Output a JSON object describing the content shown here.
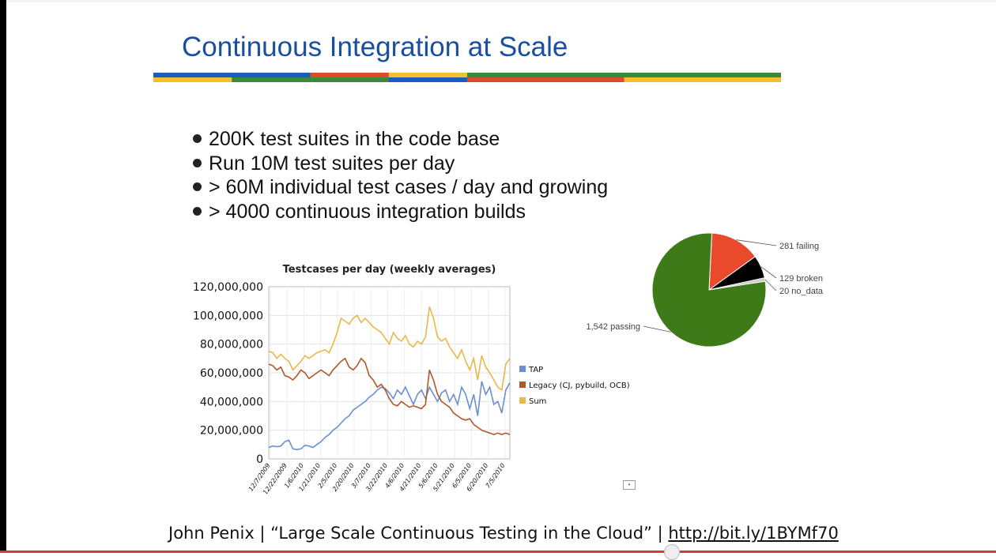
{
  "slide": {
    "title": "Continuous Integration at Scale",
    "bullets": [
      "200K test suites in the code base",
      "Run 10M test suites per day",
      "> 60M individual test cases / day and growing",
      "> 4000 continuous integration builds"
    ],
    "footer": {
      "text": "John Penix | “Large Scale Continuous Testing in the Cloud” | ",
      "link": "http://bit.ly/1BYMf70"
    },
    "stripe_colors": [
      "#1e5bbf",
      "#f2c12e",
      "#3a8a3a",
      "#d94b2b"
    ]
  },
  "chart_data": [
    {
      "type": "line",
      "title": "Testcases per day (weekly averages)",
      "ylim": [
        0,
        120000000
      ],
      "yticks": [
        "0",
        "20,000,000",
        "40,000,000",
        "60,000,000",
        "80,000,000",
        "100,000,000",
        "120,000,000"
      ],
      "xticks": [
        "12/7/2009",
        "12/22/2009",
        "1/6/2010",
        "1/21/2010",
        "2/5/2010",
        "2/20/2010",
        "3/7/2010",
        "3/22/2010",
        "4/6/2010",
        "4/21/2010",
        "5/6/2010",
        "5/21/2010",
        "6/5/2010",
        "6/20/2010",
        "7/5/2010"
      ],
      "legend_position": "right",
      "series": [
        {
          "name": "TAP",
          "color": "#6b8fd1",
          "values": [
            8000000,
            9000000,
            8500000,
            9000000,
            12000000,
            13000000,
            7000000,
            6500000,
            7000000,
            9500000,
            9000000,
            8000000,
            10000000,
            12000000,
            15000000,
            17000000,
            20000000,
            22000000,
            25000000,
            28000000,
            30000000,
            34000000,
            36000000,
            38000000,
            40000000,
            43000000,
            45000000,
            48000000,
            50000000,
            49000000,
            46000000,
            42000000,
            48000000,
            45000000,
            50000000,
            44000000,
            38000000,
            45000000,
            48000000,
            42000000,
            50000000,
            45000000,
            40000000,
            46000000,
            48000000,
            40000000,
            45000000,
            38000000,
            50000000,
            45000000,
            35000000,
            45000000,
            30000000,
            54000000,
            45000000,
            50000000,
            38000000,
            40000000,
            32000000,
            48000000,
            53000000
          ]
        },
        {
          "name": "Legacy (CJ, pybuild, OCB)",
          "color": "#b0582a",
          "values": [
            66000000,
            65000000,
            62000000,
            64000000,
            58000000,
            57000000,
            55000000,
            58000000,
            62000000,
            60000000,
            56000000,
            58000000,
            60000000,
            62000000,
            60000000,
            58000000,
            62000000,
            65000000,
            68000000,
            70000000,
            64000000,
            62000000,
            65000000,
            70000000,
            67000000,
            58000000,
            55000000,
            50000000,
            52000000,
            48000000,
            42000000,
            38000000,
            37000000,
            40000000,
            38000000,
            36000000,
            37000000,
            36000000,
            35000000,
            38000000,
            62000000,
            55000000,
            45000000,
            40000000,
            38000000,
            36000000,
            32000000,
            30000000,
            28000000,
            27000000,
            28000000,
            24000000,
            22000000,
            20000000,
            19000000,
            18000000,
            17000000,
            18000000,
            17000000,
            18000000,
            17000000
          ]
        },
        {
          "name": "Sum",
          "color": "#e8b84a",
          "values": [
            75000000,
            74000000,
            70000000,
            73000000,
            70000000,
            68000000,
            62000000,
            65000000,
            68000000,
            72000000,
            70000000,
            72000000,
            74000000,
            75000000,
            76000000,
            74000000,
            80000000,
            88000000,
            98000000,
            96000000,
            94000000,
            98000000,
            100000000,
            95000000,
            98000000,
            95000000,
            92000000,
            90000000,
            88000000,
            84000000,
            80000000,
            88000000,
            84000000,
            82000000,
            86000000,
            80000000,
            78000000,
            82000000,
            80000000,
            85000000,
            106000000,
            98000000,
            85000000,
            82000000,
            84000000,
            78000000,
            74000000,
            70000000,
            76000000,
            68000000,
            62000000,
            70000000,
            55000000,
            72000000,
            64000000,
            60000000,
            55000000,
            50000000,
            48000000,
            66000000,
            70000000
          ]
        }
      ]
    },
    {
      "type": "pie",
      "slices": [
        {
          "label": "1,542 passing",
          "value": 1542,
          "color": "#3e7a17"
        },
        {
          "label": "281 failing",
          "value": 281,
          "color": "#ea4a2c"
        },
        {
          "label": "129 broken",
          "value": 129,
          "color": "#000000"
        },
        {
          "label": "20 no_data",
          "value": 20,
          "color": "#cccccc"
        }
      ]
    }
  ]
}
